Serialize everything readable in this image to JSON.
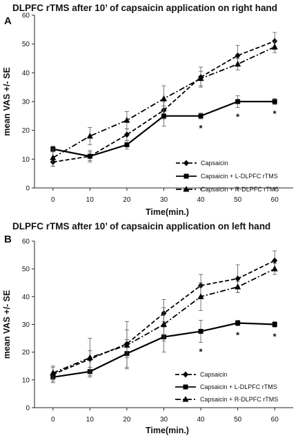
{
  "chart_data": [
    {
      "type": "line",
      "panel_label": "A",
      "title": "DLPFC rTMS after 10’ of capsaicin application on right hand",
      "xlabel": "Time(min.)",
      "ylabel": "mean VAS +/- SE",
      "x": [
        0,
        10,
        20,
        30,
        40,
        50,
        60
      ],
      "xlim": [
        -5,
        65
      ],
      "ylim": [
        0,
        60
      ],
      "yticks": [
        0,
        10,
        20,
        30,
        40,
        50,
        60
      ],
      "grid": false,
      "legend_position": "lower-right",
      "series": [
        {
          "name": "Capsaicin",
          "style": "dashed",
          "marker": "diamond",
          "values": [
            9,
            11,
            18.5,
            27,
            38.5,
            46,
            51
          ],
          "se": [
            1.5,
            2,
            2,
            3,
            3.5,
            3.5,
            3
          ]
        },
        {
          "name": "Capsaicin + L-DLPFC rTMS",
          "style": "solid",
          "marker": "square",
          "values": [
            13.5,
            11,
            15,
            25,
            25,
            30,
            30
          ],
          "se": [
            1,
            1.5,
            1.5,
            3.5,
            1,
            2,
            1
          ]
        },
        {
          "name": "Capsaicin + R-DLPFC rTMS",
          "style": "dashdot",
          "marker": "triangle",
          "values": [
            10.5,
            18,
            23.5,
            31,
            38,
            43,
            49
          ],
          "se": [
            3,
            3,
            3,
            4.5,
            2.5,
            2,
            2
          ]
        }
      ],
      "significance_markers": [
        {
          "x": 40,
          "label": "*"
        },
        {
          "x": 50,
          "label": "*"
        },
        {
          "x": 60,
          "label": "*"
        }
      ]
    },
    {
      "type": "line",
      "panel_label": "B",
      "title": "DLPFC rTMS after 10’ of capsaicin application on left hand",
      "xlabel": "Time(min.)",
      "ylabel": "mean VAS +/- SE",
      "x": [
        0,
        10,
        20,
        30,
        40,
        50,
        60
      ],
      "xlim": [
        -5,
        65
      ],
      "ylim": [
        0,
        60
      ],
      "yticks": [
        0,
        10,
        20,
        30,
        40,
        50,
        60
      ],
      "grid": false,
      "legend_position": "lower-right",
      "series": [
        {
          "name": "Capsaicin",
          "style": "dashed",
          "marker": "diamond",
          "values": [
            12,
            17.5,
            23,
            34,
            44,
            46.5,
            53
          ],
          "se": [
            3,
            3,
            5,
            5,
            4,
            5,
            3.5
          ]
        },
        {
          "name": "Capsaicin + L-DLPFC rTMS",
          "style": "solid",
          "marker": "square",
          "values": [
            11,
            13,
            19.5,
            25.5,
            27.5,
            30.5,
            30
          ],
          "se": [
            1.5,
            1.5,
            5,
            5.5,
            4,
            1,
            1
          ]
        },
        {
          "name": "Capsaicin + R-DLPFC rTMS",
          "style": "dashdot",
          "marker": "triangle",
          "values": [
            12.5,
            18,
            22.5,
            30,
            40,
            43.5,
            50
          ],
          "se": [
            2,
            7,
            8.5,
            6,
            5,
            2,
            2
          ]
        }
      ],
      "significance_markers": [
        {
          "x": 40,
          "label": "*"
        },
        {
          "x": 50,
          "label": "*"
        },
        {
          "x": 60,
          "label": "*"
        }
      ]
    }
  ]
}
